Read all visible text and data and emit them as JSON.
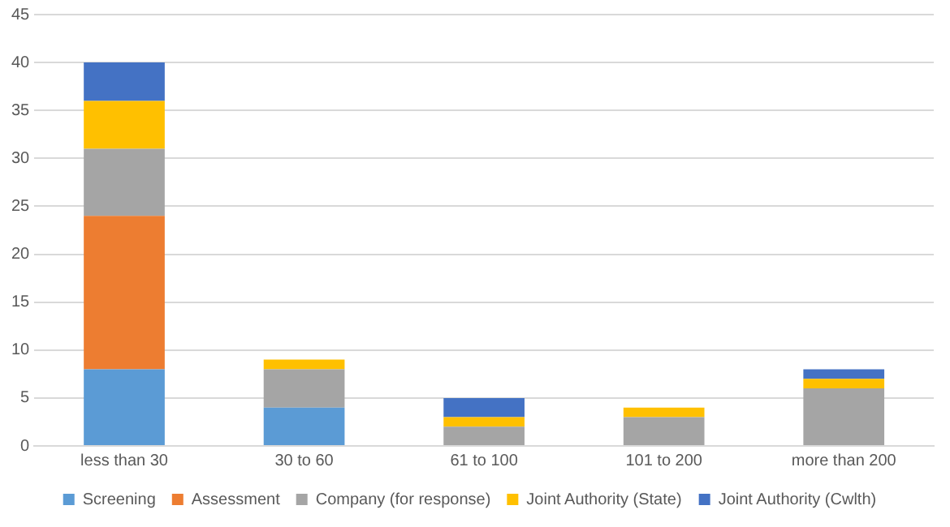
{
  "chart_data": {
    "type": "bar",
    "stacked": true,
    "categories": [
      "less than 30",
      "30 to 60",
      "61 to 100",
      "101 to 200",
      "more than 200"
    ],
    "series": [
      {
        "name": "Screening",
        "color": "#5b9bd5",
        "values": [
          8,
          4,
          0,
          0,
          0
        ]
      },
      {
        "name": "Assessment",
        "color": "#ed7d31",
        "values": [
          16,
          0,
          0,
          0,
          0
        ]
      },
      {
        "name": "Company (for response)",
        "color": "#a5a5a5",
        "values": [
          7,
          4,
          2,
          3,
          6
        ]
      },
      {
        "name": "Joint Authority (State)",
        "color": "#ffc000",
        "values": [
          5,
          1,
          1,
          1,
          1
        ]
      },
      {
        "name": "Joint Authority (Cwlth)",
        "color": "#4472c4",
        "values": [
          4,
          0,
          2,
          0,
          1
        ]
      }
    ],
    "ylim": [
      0,
      45
    ],
    "yticks": [
      0,
      5,
      10,
      15,
      20,
      25,
      30,
      35,
      40,
      45
    ],
    "grid": "y",
    "legend": "bottom"
  }
}
